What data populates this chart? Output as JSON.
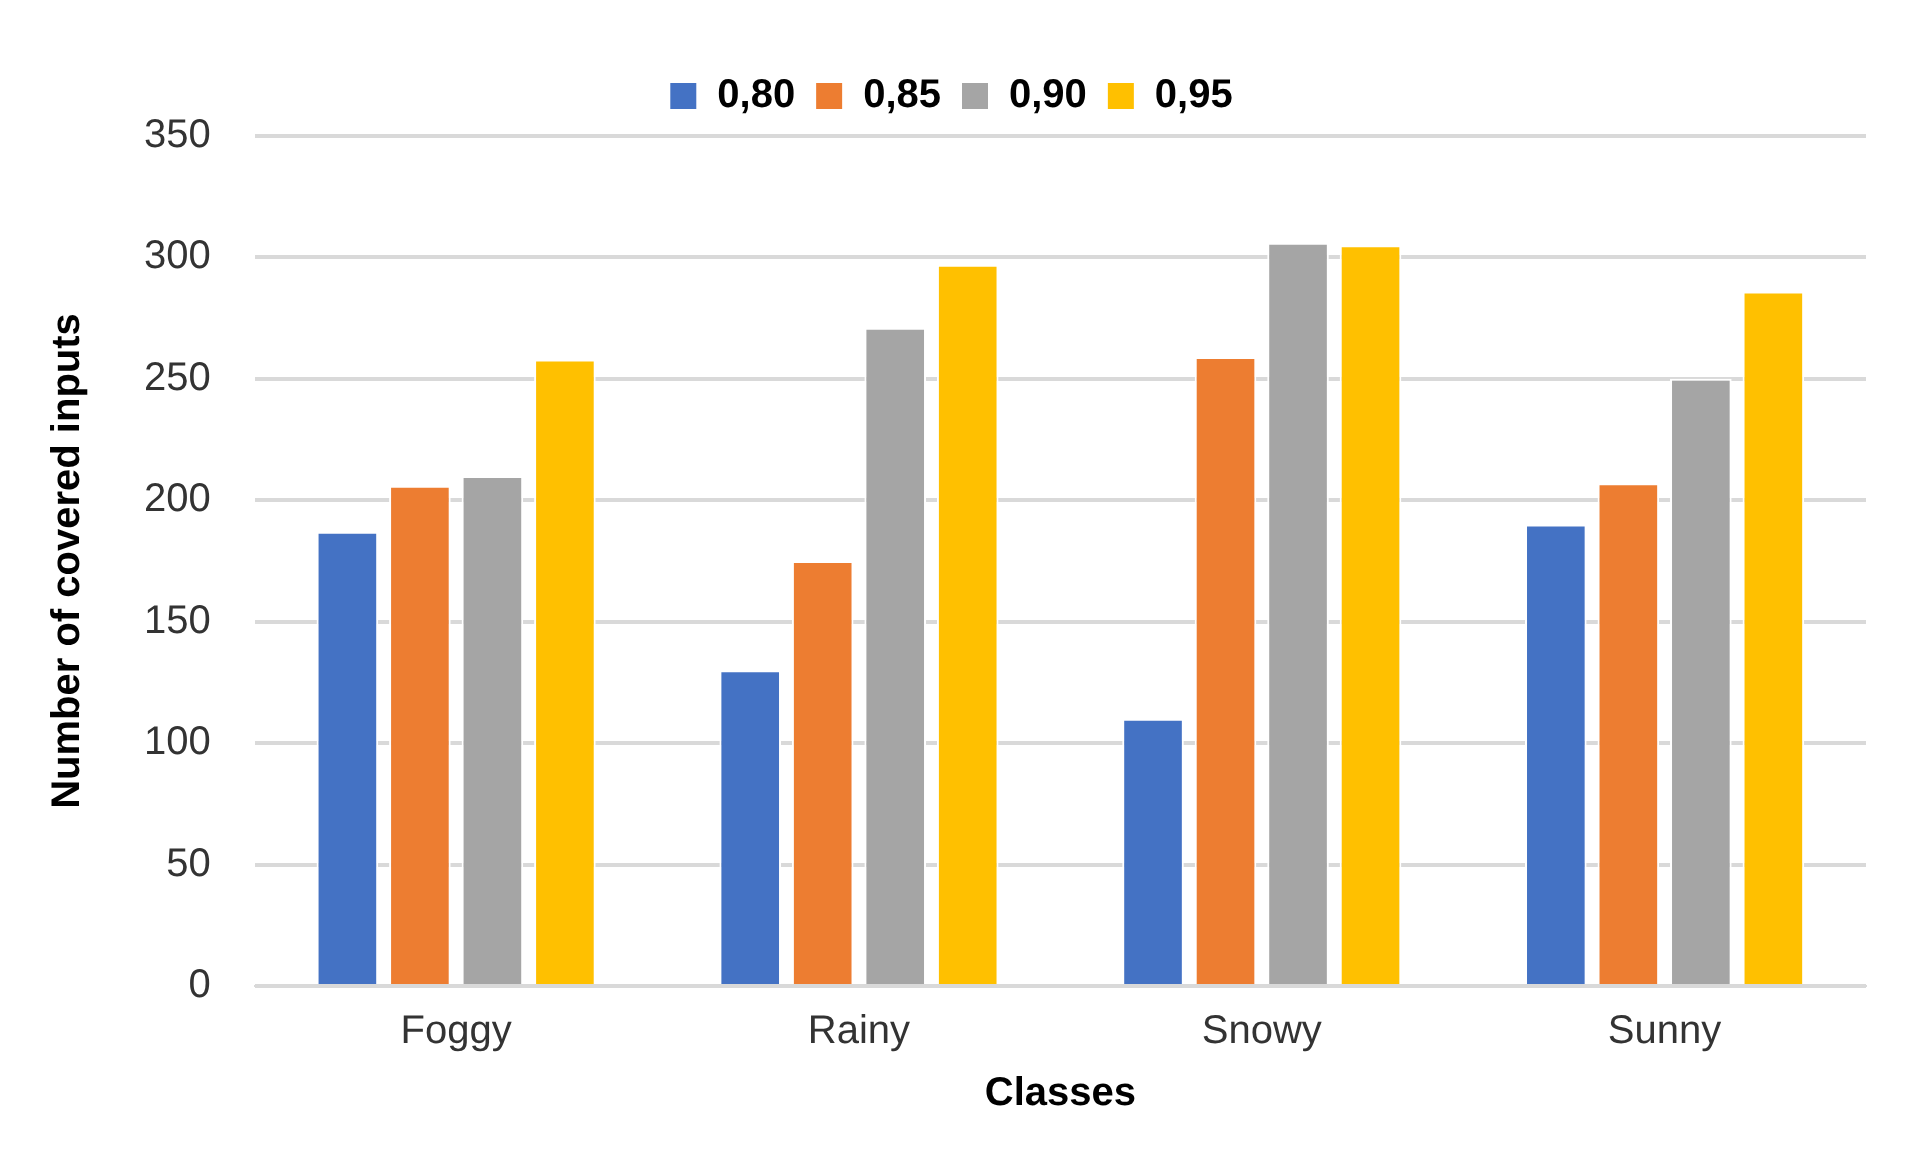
{
  "chart_data": {
    "type": "bar",
    "xlabel": "Classes",
    "ylabel": "Number of covered inputs",
    "categories": [
      "Foggy",
      "Rainy",
      "Snowy",
      "Sunny"
    ],
    "series": [
      {
        "name": "0,80",
        "color": "#4472c4",
        "values": [
          187,
          130,
          110,
          190
        ]
      },
      {
        "name": "0,85",
        "color": "#ed7d31",
        "values": [
          206,
          175,
          259,
          207
        ]
      },
      {
        "name": "0,90",
        "color": "#a5a5a5",
        "values": [
          210,
          271,
          306,
          250
        ]
      },
      {
        "name": "0,95",
        "color": "#ffc000",
        "values": [
          258,
          297,
          305,
          286
        ]
      }
    ],
    "ylim": [
      0,
      350
    ],
    "yticks": [
      0,
      50,
      100,
      150,
      200,
      250,
      300,
      350
    ],
    "grid": "y",
    "legend": "top"
  }
}
